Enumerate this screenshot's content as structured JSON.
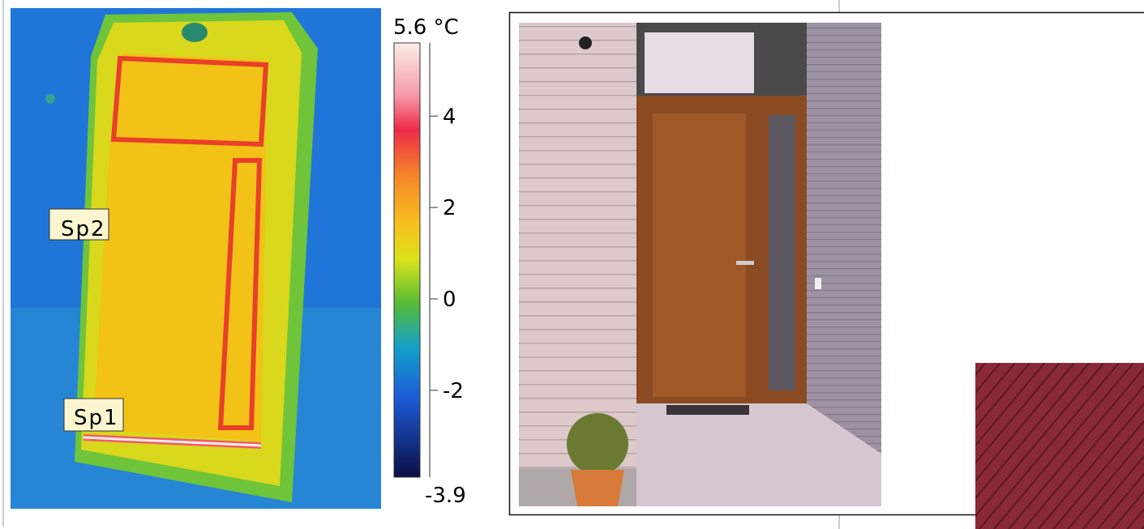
{
  "colorbar": {
    "lim": [
      -3.9,
      5.6
    ],
    "ticks": [
      {
        "value": 5.6,
        "label": "5.6 °C"
      },
      4,
      2,
      0,
      -2,
      -3.9
    ]
  },
  "markers": [
    "Sp2",
    "Sp1"
  ]
}
